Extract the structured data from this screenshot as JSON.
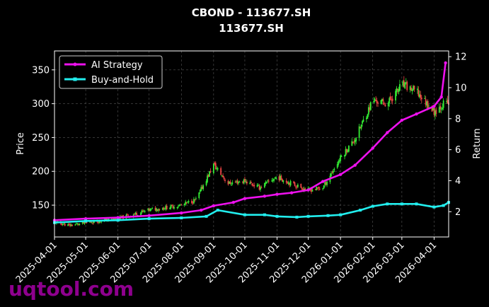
{
  "chart_data": {
    "type": "line",
    "title": "CBOND - 113677.SH",
    "subtitle": "113677.SH",
    "xlabel": "",
    "ylabel": "Price",
    "y2label": "Return",
    "x_ticks": [
      "2025-04-01",
      "2025-05-01",
      "2025-06-01",
      "2025-07-01",
      "2025-08-01",
      "2025-09-01",
      "2025-10-01",
      "2025-11-01",
      "2025-12-01",
      "2026-01-01",
      "2026-02-01",
      "2026-03-01",
      "2026-04-01"
    ],
    "x_range": [
      "2025-04-01",
      "2026-04-15"
    ],
    "ylim": [
      103,
      378
    ],
    "y_ticks": [
      150,
      200,
      250,
      300,
      350
    ],
    "y2lim": [
      0.37,
      12.37
    ],
    "y2_ticks": [
      2,
      4,
      6,
      8,
      10,
      12
    ],
    "grid": true,
    "legend_position": "top-left",
    "price_candles": {
      "up_color": "#33ee33",
      "down_color": "#ee4444",
      "dates": [
        "2025-04-01",
        "2025-04-15",
        "2025-05-01",
        "2025-05-15",
        "2025-06-01",
        "2025-06-15",
        "2025-07-01",
        "2025-07-15",
        "2025-08-01",
        "2025-08-15",
        "2025-09-01",
        "2025-09-15",
        "2025-10-01",
        "2025-10-15",
        "2025-11-01",
        "2025-11-15",
        "2025-12-01",
        "2025-12-15",
        "2026-01-01",
        "2026-01-15",
        "2026-02-01",
        "2026-02-15",
        "2026-03-01",
        "2026-03-15",
        "2026-04-01",
        "2026-04-10"
      ],
      "close": [
        125,
        120,
        124,
        127,
        130,
        136,
        143,
        146,
        150,
        158,
        210,
        182,
        186,
        176,
        192,
        182,
        172,
        176,
        220,
        248,
        305,
        300,
        328,
        318,
        288,
        300
      ]
    },
    "series": [
      {
        "name": "AI Strategy",
        "color": "#ee11ee",
        "x": [
          "2025-04-01",
          "2025-05-01",
          "2025-06-01",
          "2025-07-01",
          "2025-08-01",
          "2025-08-20",
          "2025-09-01",
          "2025-09-20",
          "2025-10-01",
          "2025-10-20",
          "2025-11-01",
          "2025-11-15",
          "2025-12-01",
          "2025-12-15",
          "2026-01-01",
          "2026-01-15",
          "2026-02-01",
          "2026-02-15",
          "2026-03-01",
          "2026-03-15",
          "2026-04-01",
          "2026-04-08",
          "2026-04-12"
        ],
        "values": [
          1.45,
          1.55,
          1.62,
          1.75,
          1.92,
          2.1,
          2.38,
          2.6,
          2.85,
          3.0,
          3.12,
          3.22,
          3.4,
          3.95,
          4.4,
          5.0,
          6.1,
          7.1,
          7.9,
          8.3,
          8.8,
          9.4,
          11.6
        ]
      },
      {
        "name": "Buy-and-Hold",
        "color": "#22eeee",
        "x": [
          "2025-04-01",
          "2025-05-01",
          "2025-06-01",
          "2025-07-01",
          "2025-08-01",
          "2025-08-25",
          "2025-09-05",
          "2025-10-01",
          "2025-10-20",
          "2025-11-01",
          "2025-11-20",
          "2025-12-01",
          "2025-12-20",
          "2026-01-01",
          "2026-01-20",
          "2026-02-01",
          "2026-02-15",
          "2026-03-01",
          "2026-03-15",
          "2026-04-01",
          "2026-04-10",
          "2026-04-15"
        ],
        "values": [
          1.3,
          1.4,
          1.45,
          1.55,
          1.6,
          1.7,
          2.1,
          1.8,
          1.8,
          1.7,
          1.65,
          1.7,
          1.75,
          1.8,
          2.1,
          2.35,
          2.5,
          2.5,
          2.5,
          2.3,
          2.4,
          2.6
        ]
      }
    ],
    "watermark": "uqtool.com"
  }
}
